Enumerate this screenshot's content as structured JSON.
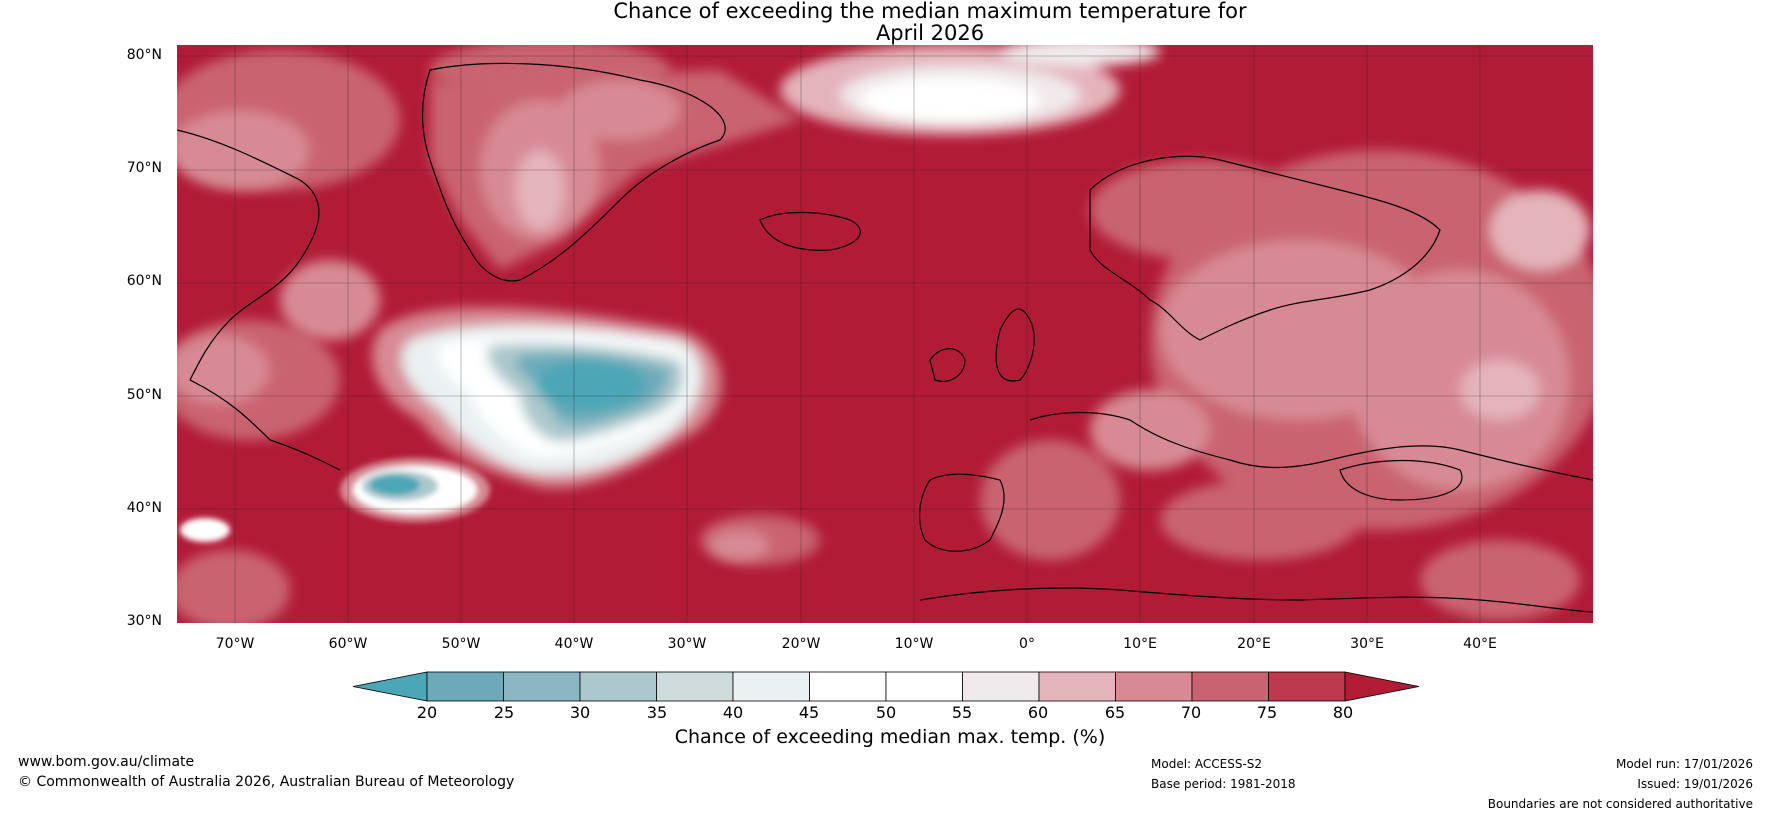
{
  "title": {
    "line1": "Chance of exceeding the median maximum temperature for",
    "line2": "April 2026"
  },
  "map": {
    "lat_ticks": [
      "80°N",
      "70°N",
      "60°N",
      "50°N",
      "40°N",
      "30°N"
    ],
    "lon_ticks": [
      "70°W",
      "60°W",
      "50°W",
      "40°W",
      "30°W",
      "20°W",
      "10°W",
      "0°",
      "10°E",
      "20°E",
      "30°E",
      "40°E"
    ],
    "lat_range": [
      30,
      81
    ],
    "lon_range": [
      -75,
      50
    ],
    "regions": [
      {
        "name": "dominant-high-chance",
        "value": 80
      },
      {
        "name": "labrador-sea-cool-anomaly",
        "value": 25
      },
      {
        "name": "nova-scotia-cool-anomaly",
        "value": 25
      },
      {
        "name": "greenland-sea-neutral",
        "value": 50
      },
      {
        "name": "greenland-interior",
        "value": 65
      },
      {
        "name": "scandinavia-europe",
        "value": 70
      }
    ]
  },
  "colorbar": {
    "ticks": [
      "20",
      "25",
      "30",
      "35",
      "40",
      "45",
      "50",
      "55",
      "60",
      "65",
      "70",
      "75",
      "80"
    ],
    "colors": [
      "#4ba6b5",
      "#6babb9",
      "#8bb7c3",
      "#abc8cc",
      "#cfdadd",
      "#e9f1f2",
      "#ffffff",
      "#ffffff",
      "#efeaec",
      "#e4b4bb",
      "#d78a94",
      "#c9636f",
      "#bc3a4b",
      "#b11b36"
    ],
    "label": "Chance of exceeding median max. temp. (%)"
  },
  "footer": {
    "url": "www.bom.gov.au/climate",
    "copyright": "© Commonwealth of Australia 2026, Australian Bureau of Meteorology",
    "model": "Model: ACCESS-S2",
    "base_period": "Base period: 1981-2018",
    "model_run": "Model run: 17/01/2026",
    "issued": "Issued: 19/01/2026",
    "disclaimer": "Boundaries are not considered authoritative"
  }
}
